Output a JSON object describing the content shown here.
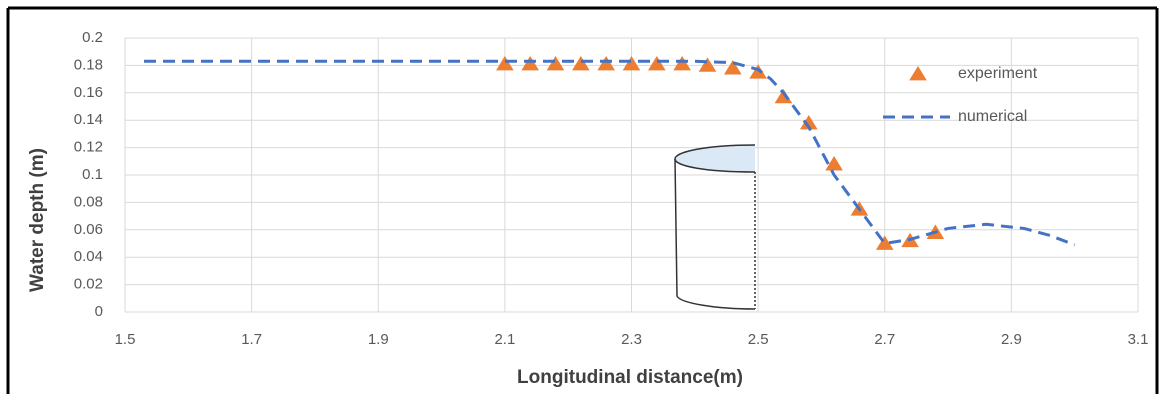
{
  "chart_data": {
    "type": "scatter",
    "xlabel": "Longitudinal distance(m)",
    "ylabel": "Water depth (m)",
    "xlim": [
      1.5,
      3.1
    ],
    "xticks": [
      1.5,
      1.7,
      1.9,
      2.1,
      2.3,
      2.5,
      2.7,
      2.9,
      3.1
    ],
    "ylim": [
      0,
      0.2
    ],
    "yticks": [
      0,
      0.02,
      0.04,
      0.06,
      0.08,
      0.1,
      0.12,
      0.14,
      0.16,
      0.18,
      0.2
    ],
    "grid": true,
    "legend": "upper right",
    "series": [
      {
        "name": "experiment",
        "type": "scatter",
        "marker": "triangle",
        "color": "#ed7d31",
        "x": [
          2.1,
          2.14,
          2.18,
          2.22,
          2.26,
          2.3,
          2.34,
          2.38,
          2.42,
          2.46,
          2.5,
          2.54,
          2.58,
          2.62,
          2.66,
          2.7,
          2.74,
          2.78
        ],
        "values": [
          0.181,
          0.181,
          0.181,
          0.181,
          0.181,
          0.181,
          0.181,
          0.181,
          0.18,
          0.178,
          0.175,
          0.157,
          0.138,
          0.108,
          0.075,
          0.05,
          0.052,
          0.058
        ]
      },
      {
        "name": "numerical",
        "type": "line",
        "dashed": true,
        "color": "#4472c4",
        "x": [
          1.53,
          1.8,
          2.1,
          2.4,
          2.46,
          2.5,
          2.52,
          2.54,
          2.58,
          2.62,
          2.66,
          2.7,
          2.74,
          2.8,
          2.86,
          2.92,
          2.96,
          3.0
        ],
        "values": [
          0.183,
          0.183,
          0.183,
          0.183,
          0.182,
          0.177,
          0.17,
          0.16,
          0.135,
          0.1,
          0.075,
          0.05,
          0.053,
          0.061,
          0.064,
          0.061,
          0.056,
          0.049
        ]
      }
    ]
  }
}
